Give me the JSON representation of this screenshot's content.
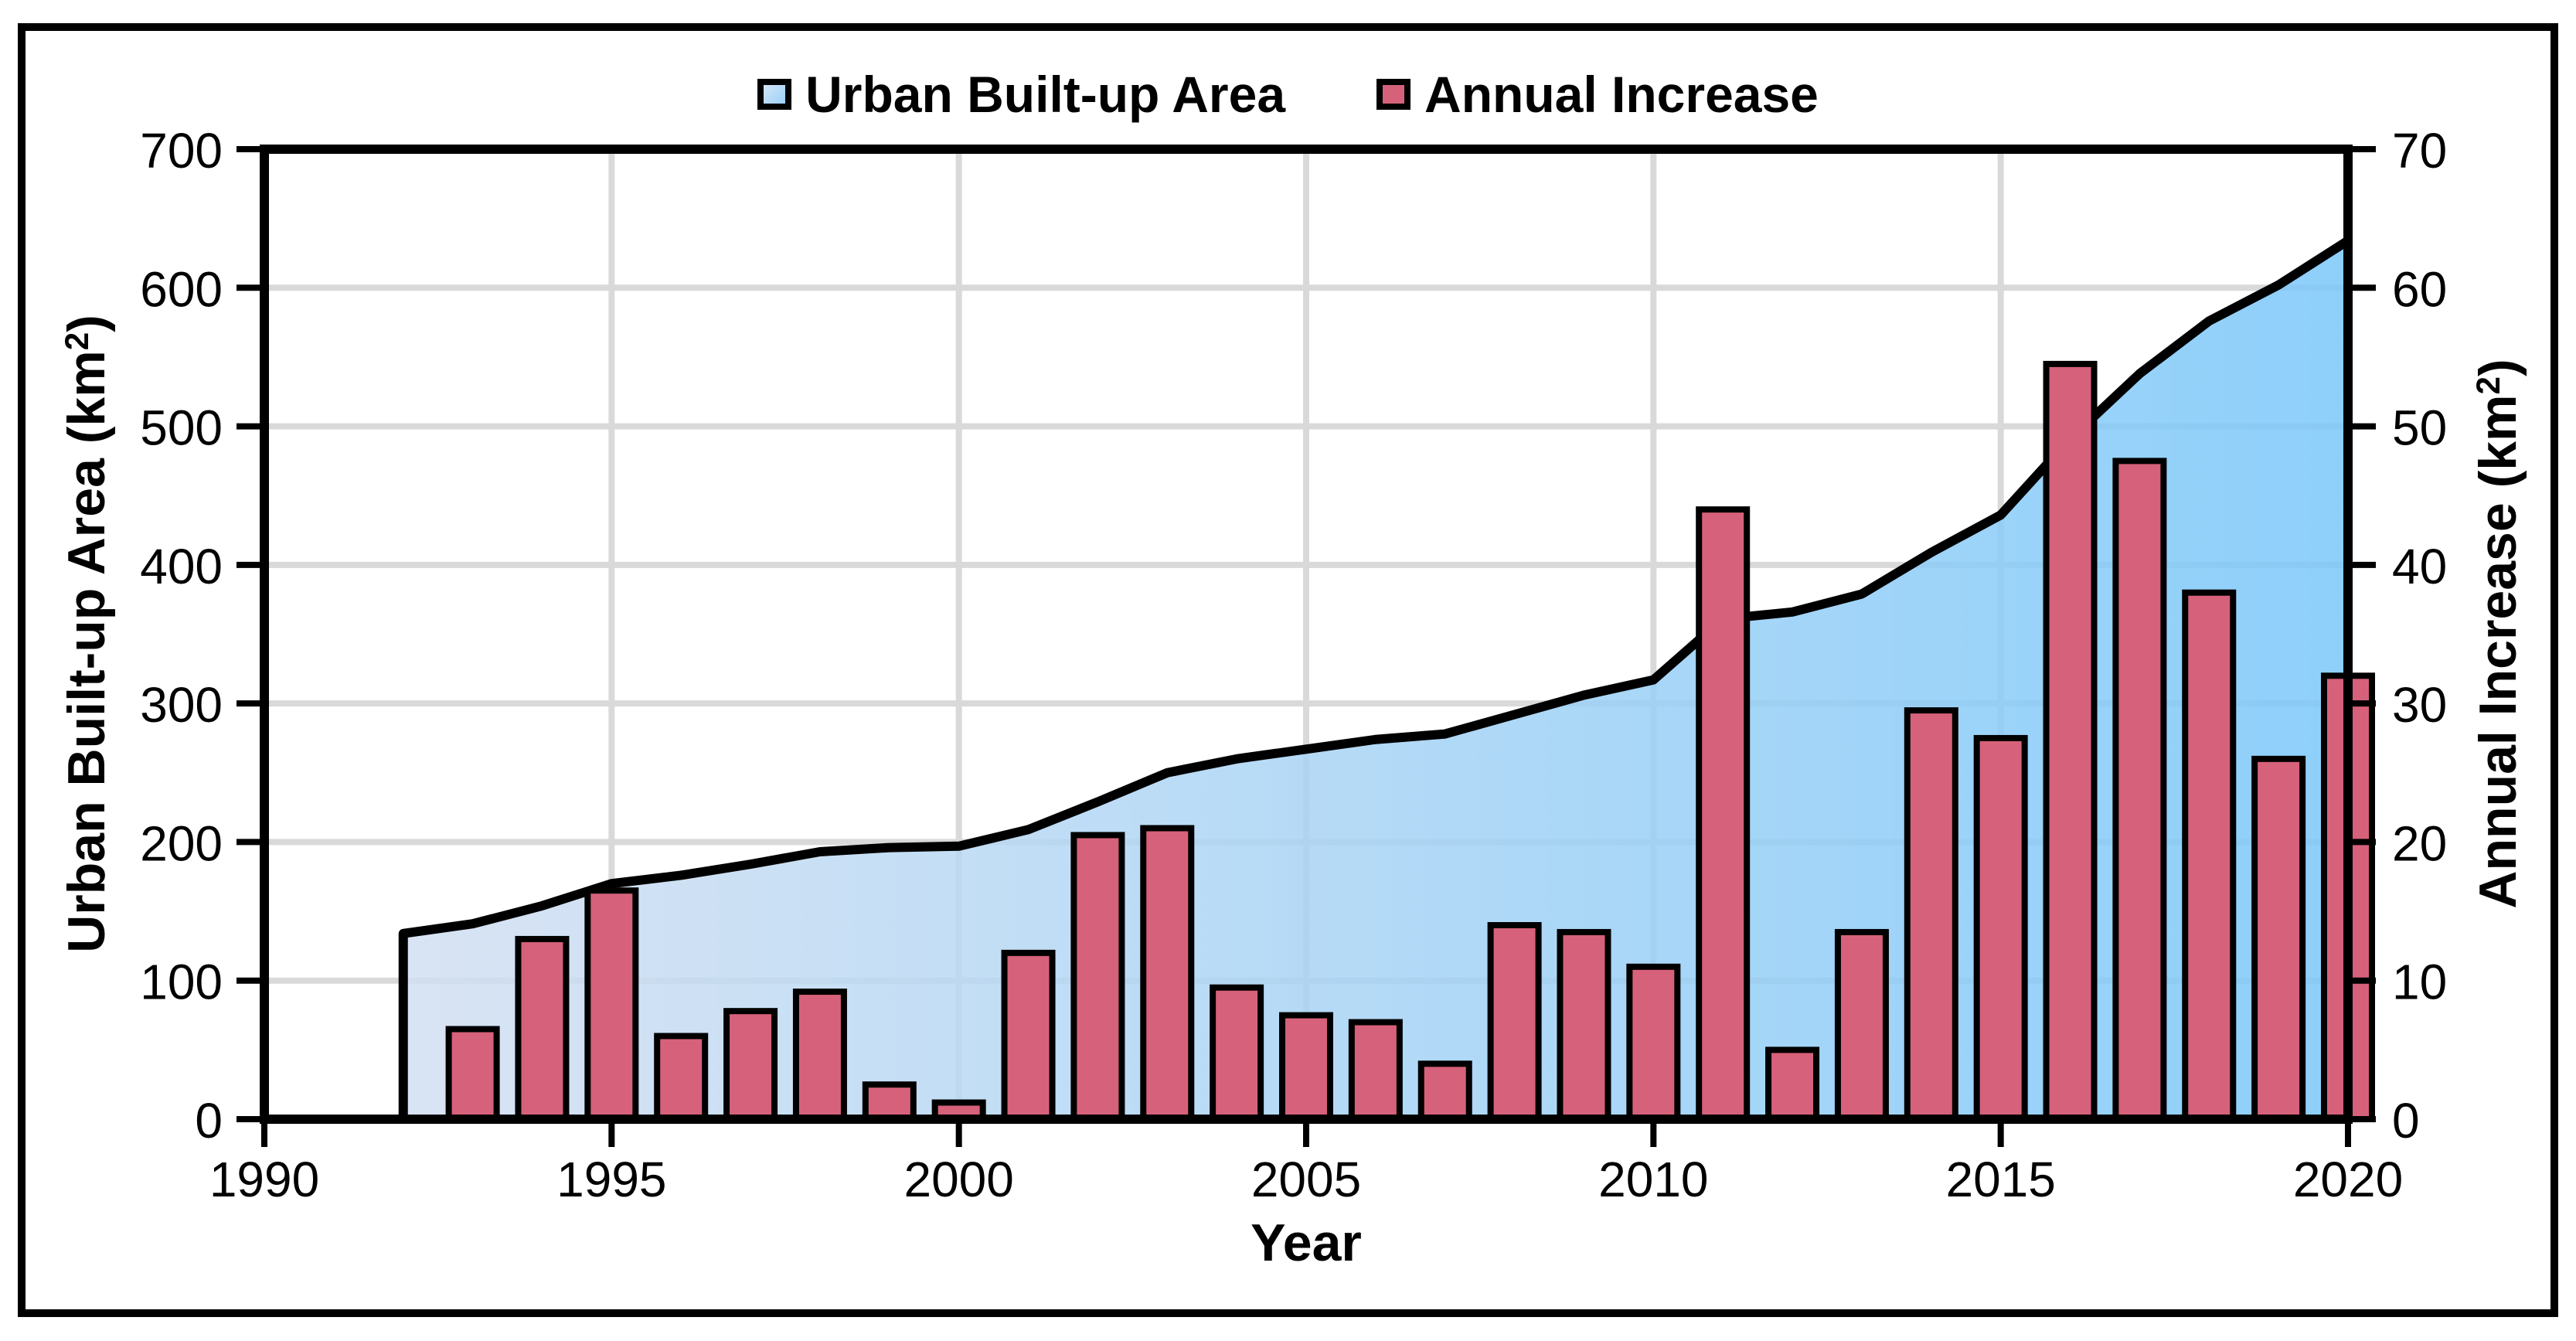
{
  "legend": {
    "items": [
      {
        "label": "Urban Built-up Area",
        "swatch": "area-swatch"
      },
      {
        "label": "Annual Increase",
        "swatch": "bar-swatch"
      }
    ]
  },
  "axes": {
    "x": {
      "title": "Year"
    },
    "y_left": {
      "title_prefix": "Urban Built-up Area (km",
      "title_sup": "2",
      "title_suffix": ")"
    },
    "y_right": {
      "title_prefix": "Annual Increase (km",
      "title_sup": "2",
      "title_suffix": ")"
    }
  },
  "chart_data": {
    "type": "combo",
    "title": "",
    "x_axis": {
      "label": "Year",
      "range": [
        1990,
        2020
      ],
      "ticks": [
        1990,
        1995,
        2000,
        2005,
        2010,
        2015,
        2020
      ],
      "grid_years": [
        1995,
        2000,
        2005,
        2010,
        2015
      ]
    },
    "y_left": {
      "label": "Urban Built-up Area (km2)",
      "range": [
        0,
        700
      ],
      "ticks": [
        0,
        100,
        200,
        300,
        400,
        500,
        600,
        700
      ],
      "grid_values": [
        100,
        200,
        300,
        400,
        500,
        600
      ]
    },
    "y_right": {
      "label": "Annual Increase (km2)",
      "range": [
        0,
        70
      ],
      "ticks": [
        0,
        10,
        20,
        30,
        40,
        50,
        60,
        70
      ]
    },
    "grid": true,
    "legend_position": "top-center",
    "series": [
      {
        "name": "Urban Built-up Area",
        "type": "area",
        "axis": "left",
        "x": [
          1992,
          1993,
          1994,
          1995,
          1996,
          1997,
          1998,
          1999,
          2000,
          2001,
          2002,
          2003,
          2004,
          2005,
          2006,
          2007,
          2008,
          2009,
          2010,
          2011,
          2012,
          2013,
          2014,
          2015,
          2016,
          2017,
          2018,
          2019,
          2020
        ],
        "values": [
          134,
          141,
          154,
          170,
          176,
          184,
          193,
          196,
          197,
          209,
          229,
          250,
          260,
          267,
          274,
          278,
          292,
          306,
          317,
          361,
          366,
          379,
          409,
          436,
          491,
          538,
          576,
          602,
          634
        ]
      },
      {
        "name": "Annual Increase",
        "type": "bar",
        "axis": "right",
        "x": [
          1993,
          1994,
          1995,
          1996,
          1997,
          1998,
          1999,
          2000,
          2001,
          2002,
          2003,
          2004,
          2005,
          2006,
          2007,
          2008,
          2009,
          2010,
          2011,
          2012,
          2013,
          2014,
          2015,
          2016,
          2017,
          2018,
          2019,
          2020
        ],
        "values": [
          6.5,
          13,
          16.5,
          6,
          7.8,
          9.2,
          2.5,
          1.2,
          12,
          20.5,
          21,
          9.5,
          7.5,
          7,
          4,
          14,
          13.5,
          11,
          44,
          5,
          13.5,
          29.5,
          27.5,
          54.5,
          47.5,
          38,
          26,
          32
        ]
      }
    ],
    "colors": {
      "area_fill_start": "rgb(210,223,241)",
      "area_fill_end": "rgb(122,199,249)",
      "area_fill_opacity": 0.85,
      "area_line": "#000000",
      "bar_fill": "#d6617a",
      "bar_stroke": "#000000",
      "grid": "#d9d9d9",
      "frame": "#000000"
    }
  }
}
